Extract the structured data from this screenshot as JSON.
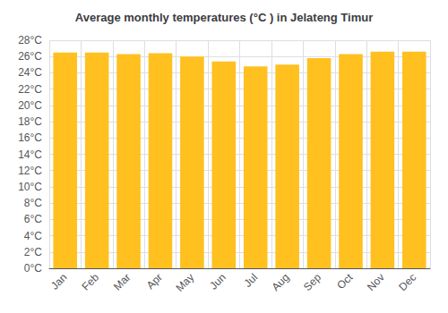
{
  "chart_data": {
    "type": "bar",
    "title": "Average monthly temperatures (°C ) in Jelateng Timur",
    "categories": [
      "Jan",
      "Feb",
      "Mar",
      "Apr",
      "May",
      "Jun",
      "Jul",
      "Aug",
      "Sep",
      "Oct",
      "Nov",
      "Dec"
    ],
    "values": [
      26.5,
      26.5,
      26.3,
      26.4,
      26.0,
      25.4,
      24.8,
      25.0,
      25.8,
      26.3,
      26.6,
      26.6
    ],
    "color": "#FFC020",
    "ylim": [
      0,
      28
    ],
    "yticks": [
      {
        "value": 0,
        "label": "0°C"
      },
      {
        "value": 2,
        "label": "2°C"
      },
      {
        "value": 4,
        "label": "4°C"
      },
      {
        "value": 6,
        "label": "6°C"
      },
      {
        "value": 8,
        "label": "8°C"
      },
      {
        "value": 10,
        "label": "10°C"
      },
      {
        "value": 12,
        "label": "12°C"
      },
      {
        "value": 14,
        "label": "14°C"
      },
      {
        "value": 16,
        "label": "16°C"
      },
      {
        "value": 18,
        "label": "18°C"
      },
      {
        "value": 20,
        "label": "20°C"
      },
      {
        "value": 22,
        "label": "22°C"
      },
      {
        "value": 24,
        "label": "24°C"
      },
      {
        "value": 26,
        "label": "26°C"
      },
      {
        "value": 28,
        "label": "28°C"
      }
    ],
    "grid": true
  }
}
